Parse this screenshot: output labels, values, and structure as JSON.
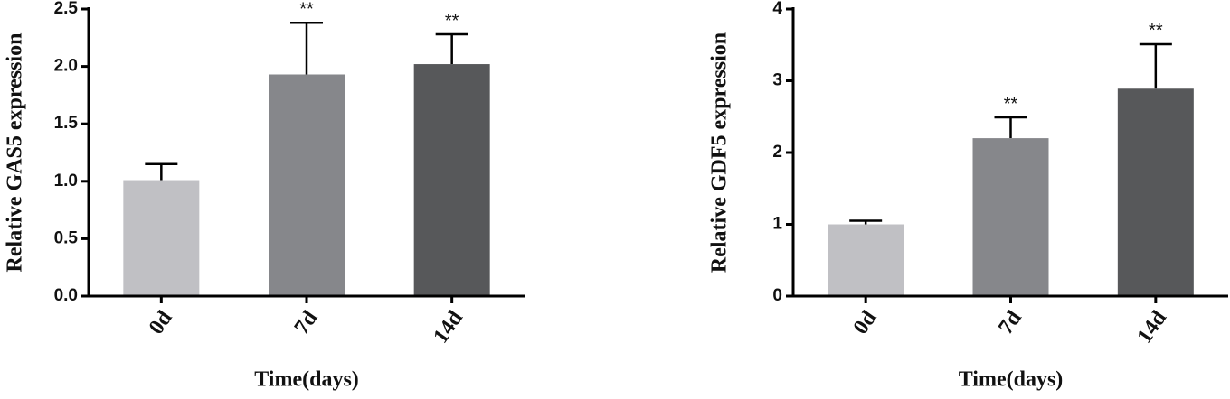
{
  "chart_data": [
    {
      "type": "bar",
      "y_label": "Relative GAS5 expression",
      "x_label": "Time(days)",
      "categories": [
        "0d",
        "7d",
        "14d"
      ],
      "values": [
        1.01,
        1.93,
        2.02
      ],
      "errors": [
        0.14,
        0.45,
        0.26
      ],
      "significance": [
        null,
        "**",
        "**"
      ],
      "colors": [
        "#c0c0c4",
        "#86878b",
        "#57585a"
      ],
      "ylim": [
        0,
        2.5
      ],
      "yticks": [
        {
          "value": 0,
          "label": "0.0"
        },
        {
          "value": 0.5,
          "label": "0.5"
        },
        {
          "value": 1,
          "label": "1.0"
        },
        {
          "value": 1.5,
          "label": "1.5"
        },
        {
          "value": 2,
          "label": "2.0"
        },
        {
          "value": 2.5,
          "label": "2.5"
        }
      ]
    },
    {
      "type": "bar",
      "y_label": "Relative GDF5 expression",
      "x_label": "Time(days)",
      "categories": [
        "0d",
        "7d",
        "14d"
      ],
      "values": [
        1.0,
        2.2,
        2.89
      ],
      "errors": [
        0.05,
        0.29,
        0.62
      ],
      "significance": [
        null,
        "**",
        "**"
      ],
      "colors": [
        "#c0c0c4",
        "#86878b",
        "#57585a"
      ],
      "ylim": [
        0,
        4
      ],
      "yticks": [
        0,
        1,
        2,
        3,
        4
      ]
    }
  ]
}
